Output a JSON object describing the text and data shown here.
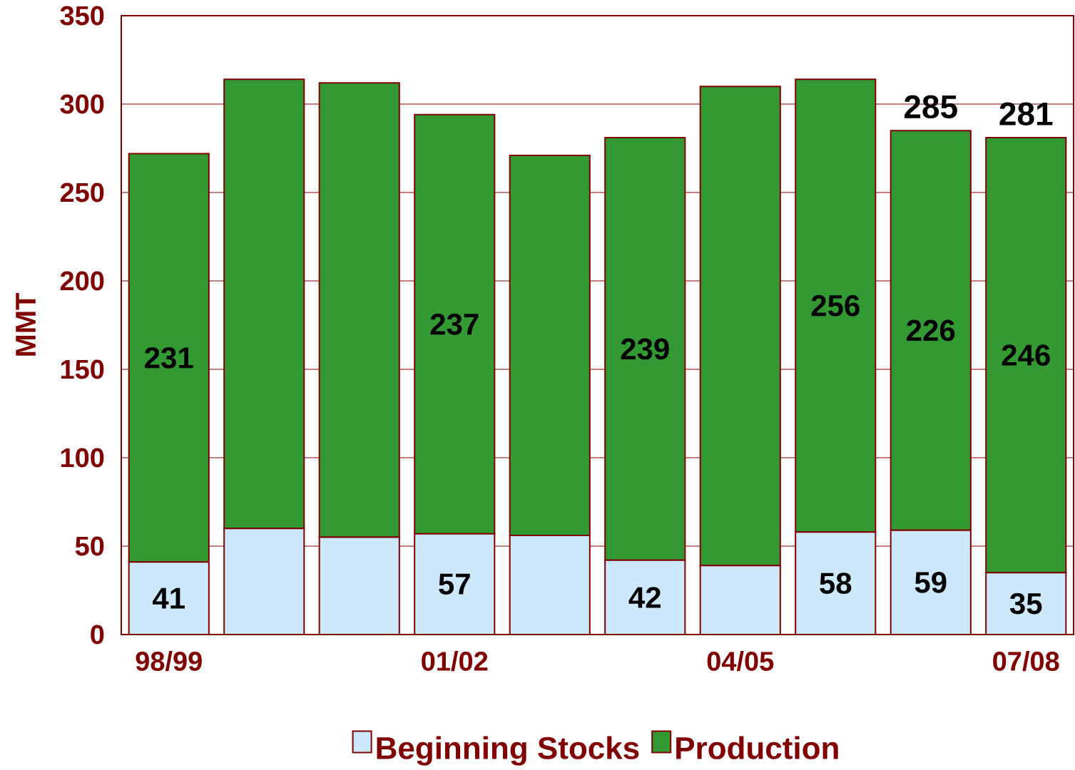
{
  "chart_data": {
    "type": "bar",
    "stacked": true,
    "ylabel": "MMT",
    "categories": [
      "98/99",
      null,
      null,
      "01/02",
      null,
      null,
      "04/05",
      null,
      null,
      "07/08"
    ],
    "series": [
      {
        "name": "Beginning Stocks",
        "color": "#cce8fa",
        "values": [
          41,
          60,
          55,
          57,
          56,
          42,
          39,
          58,
          59,
          35
        ],
        "value_labels": [
          "41",
          null,
          null,
          "57",
          null,
          "42",
          null,
          "58",
          "59",
          "35"
        ]
      },
      {
        "name": "Production",
        "color": "#339933",
        "values": [
          231,
          254,
          257,
          237,
          215,
          239,
          271,
          256,
          226,
          246
        ],
        "value_labels": [
          "231",
          null,
          null,
          "237",
          null,
          "239",
          null,
          "256",
          "226",
          "246"
        ]
      }
    ],
    "totals": [
      null,
      null,
      null,
      null,
      null,
      null,
      null,
      null,
      "285",
      "281"
    ],
    "ylim": [
      0,
      350
    ],
    "yticks": [
      0,
      50,
      100,
      150,
      200,
      250,
      300,
      350
    ],
    "grid": "y",
    "legend": "bottom"
  }
}
